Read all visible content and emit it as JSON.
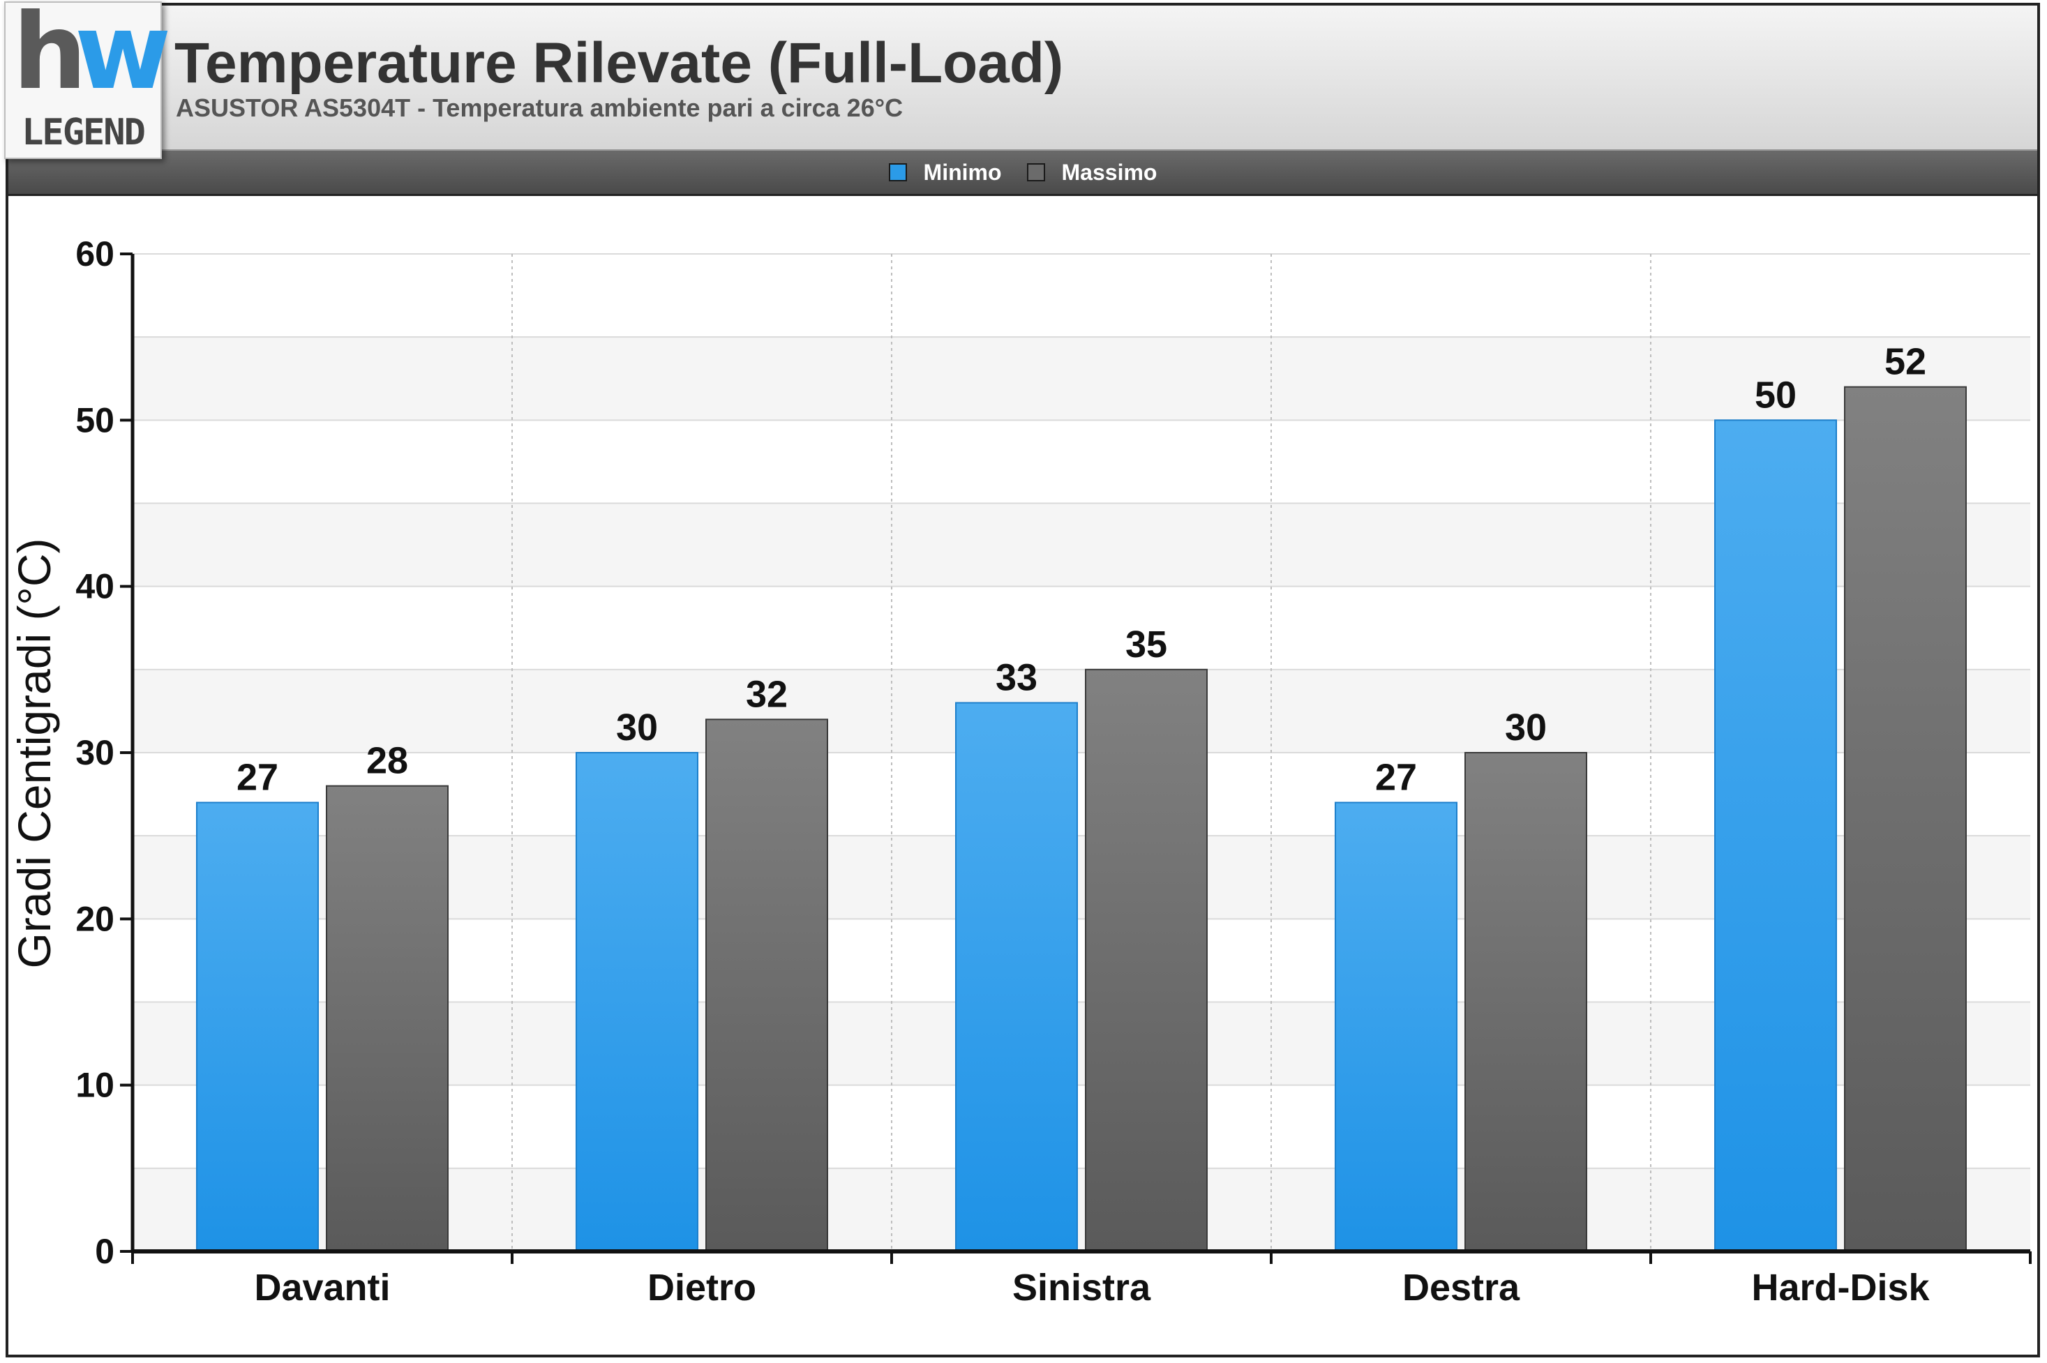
{
  "header": {
    "title": "Temperature Rilevate (Full-Load)",
    "subtitle": "ASUSTOR AS5304T - Temperatura ambiente pari a circa 26°C",
    "logo_text": "hw LEGEND"
  },
  "colors": {
    "minimo": "#2b9be8",
    "massimo": "#6b6b6b",
    "accent_logo": "#2b9be8"
  },
  "chart_data": {
    "type": "bar",
    "title": "Temperature Rilevate (Full-Load)",
    "subtitle": "ASUSTOR AS5304T - Temperatura ambiente pari a circa 26°C",
    "categories": [
      "Davanti",
      "Dietro",
      "Sinistra",
      "Destra",
      "Hard-Disk"
    ],
    "series": [
      {
        "name": "Minimo",
        "values": [
          27,
          30,
          33,
          27,
          50
        ]
      },
      {
        "name": "Massimo",
        "values": [
          28,
          32,
          35,
          30,
          52
        ]
      }
    ],
    "xlabel": "",
    "ylabel": "Gradi Centigradi (°C)",
    "ylim": [
      0,
      60
    ],
    "yticks": [
      0,
      10,
      20,
      30,
      40,
      50,
      60
    ],
    "grid": true,
    "legend_placement": "top-center",
    "data_labels": true
  }
}
